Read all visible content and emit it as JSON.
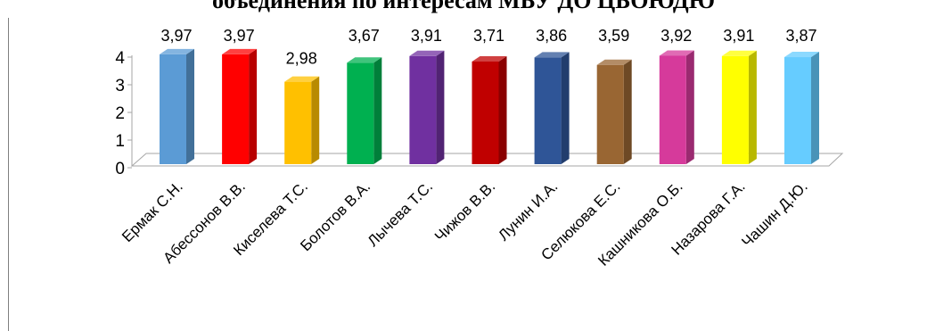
{
  "page_heading": "объединения по интересам МБУ ДО ЦБОЮДЮ",
  "chart_data": {
    "type": "bar",
    "title": "",
    "xlabel": "",
    "ylabel": "",
    "ylim": [
      0,
      4
    ],
    "yticks": [
      "0",
      "1",
      "2",
      "3",
      "4"
    ],
    "grid": false,
    "legend": "none",
    "categories": [
      "Ермак С.Н.",
      "Абессонов В.В.",
      "Киселева Т.С.",
      "Болотов В.А.",
      "Лычева Т.С.",
      "Чижов В.В.",
      "Лунин И.А.",
      "Селюкова Е.С.",
      "Кашникова О.Б.",
      "Назарова Г.А.",
      "Чашин Д.Ю."
    ],
    "values": [
      3.97,
      3.97,
      2.98,
      3.67,
      3.91,
      3.71,
      3.86,
      3.59,
      3.92,
      3.91,
      3.87
    ],
    "value_labels": [
      "3,97",
      "3,97",
      "2,98",
      "3,67",
      "3,91",
      "3,71",
      "3,86",
      "3,59",
      "3,92",
      "3,91",
      "3,87"
    ],
    "colors": [
      "#5b9bd5",
      "#ff0000",
      "#ffc000",
      "#00b050",
      "#7030a0",
      "#c00000",
      "#2f5597",
      "#996633",
      "#d63a9b",
      "#ffff00",
      "#66ccff"
    ]
  }
}
